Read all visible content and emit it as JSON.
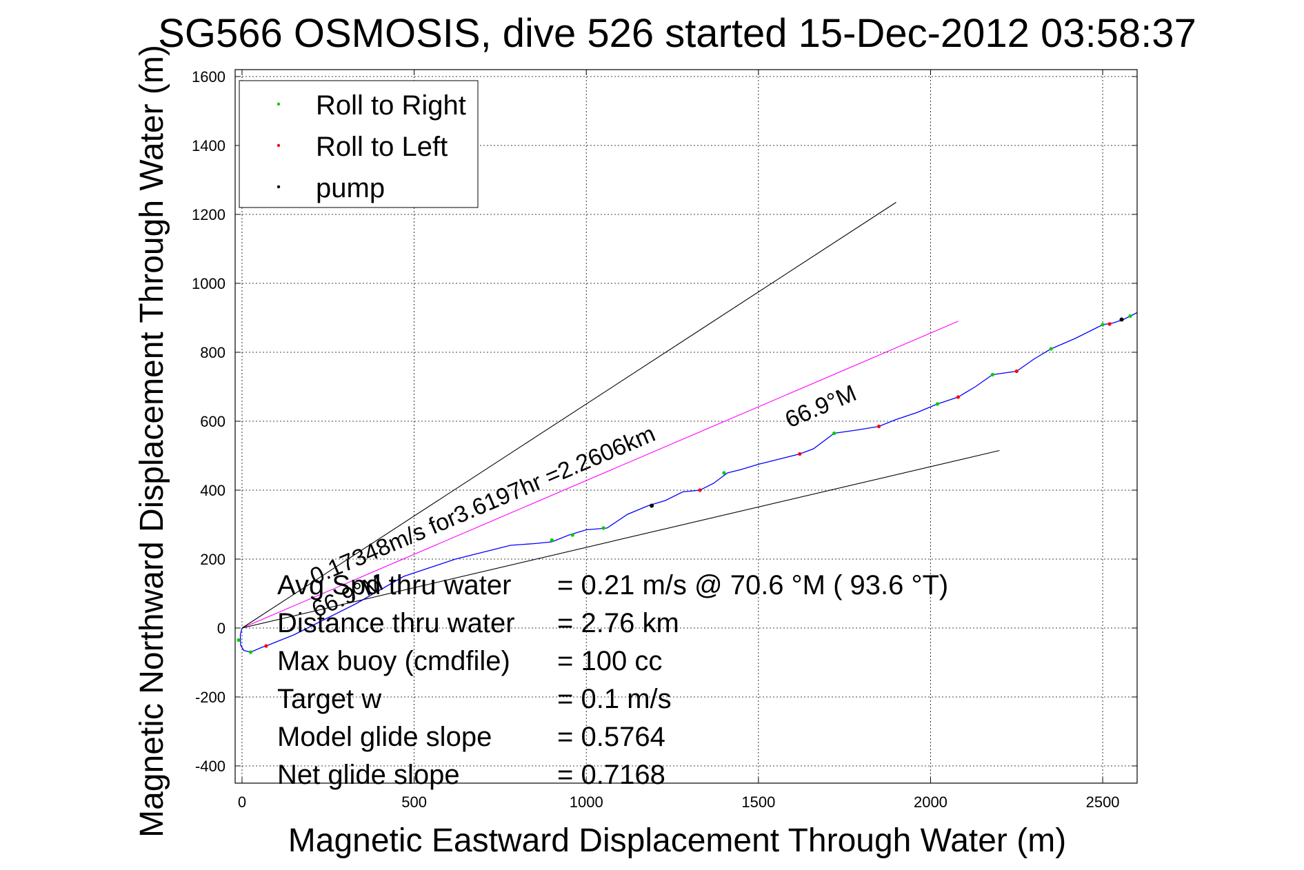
{
  "chart_data": {
    "type": "line",
    "title": "SG566 OSMOSIS, dive 526 started 15-Dec-2012 03:58:37",
    "xlabel": "Magnetic Eastward Displacement Through Water (m)",
    "ylabel": "Magnetic Northward Displacement Through Water (m)",
    "xlim": [
      -20,
      2600
    ],
    "ylim": [
      -450,
      1620
    ],
    "x_ticks": [
      0,
      500,
      1000,
      1500,
      2000,
      2500
    ],
    "y_ticks": [
      -400,
      -200,
      0,
      200,
      400,
      600,
      800,
      1000,
      1200,
      1400,
      1600
    ],
    "grid": true,
    "legend_position": "top-left",
    "legend": [
      {
        "label": "Roll to Right",
        "color": "#00cc00"
      },
      {
        "label": "Roll to Left",
        "color": "#ff0000"
      },
      {
        "label": "pump",
        "color": "#000000"
      }
    ],
    "series": [
      {
        "color": "#0000ff",
        "x": [
          0,
          -5,
          -4,
          5,
          25,
          60,
          70,
          150,
          230,
          330,
          400,
          470,
          560,
          620,
          700,
          780,
          850,
          900,
          950,
          1000,
          1060,
          1120,
          1180,
          1230,
          1280,
          1330,
          1370,
          1410,
          1450,
          1500,
          1560,
          1620,
          1660,
          1720,
          1790,
          1850,
          1900,
          1960,
          2020,
          2080,
          2130,
          2180,
          2250,
          2300,
          2350,
          2420,
          2500,
          2530,
          2560,
          2600
        ],
        "y": [
          0,
          -20,
          -50,
          -65,
          -70,
          -55,
          -52,
          -20,
          20,
          70,
          110,
          150,
          180,
          200,
          220,
          240,
          245,
          250,
          270,
          285,
          290,
          330,
          355,
          370,
          395,
          400,
          420,
          450,
          460,
          475,
          490,
          505,
          520,
          565,
          575,
          585,
          605,
          625,
          650,
          670,
          700,
          735,
          745,
          780,
          810,
          840,
          880,
          885,
          895,
          915
        ]
      },
      {
        "color": "#ff00ff",
        "x": [
          0,
          2080
        ],
        "y": [
          0,
          890
        ]
      },
      {
        "color": "#000000",
        "x": [
          0,
          1900
        ],
        "y": [
          0,
          1235
        ]
      },
      {
        "color": "#000000",
        "x": [
          0,
          2200
        ],
        "y": [
          0,
          515
        ]
      }
    ],
    "markers": {
      "roll_right": {
        "x": [
          -10,
          25,
          900,
          960,
          1050,
          1400,
          1720,
          2020,
          2180,
          2350,
          2500,
          2580
        ],
        "y": [
          -35,
          -70,
          255,
          270,
          290,
          450,
          565,
          650,
          735,
          810,
          880,
          905
        ]
      },
      "roll_left": {
        "x": [
          70,
          1330,
          1620,
          1850,
          2080,
          2250,
          2520
        ],
        "y": [
          -52,
          400,
          505,
          585,
          670,
          745,
          882
        ]
      },
      "pump": {
        "x": [
          1190,
          2555
        ],
        "y": [
          355,
          895
        ]
      }
    },
    "annotations": [
      {
        "text": "66.9°M",
        "x": 1590,
        "y": 580,
        "angle_deg": -23
      },
      {
        "text": "0.17348m/s for3.6197hr =2.2606km",
        "x": 210,
        "y": 125,
        "angle_deg": -23
      },
      {
        "text": "66.9°M",
        "x": 215,
        "y": 30,
        "angle_deg": -23
      }
    ],
    "stats": [
      {
        "label": "Avg Spd thru water",
        "value": "=  0.21 m/s @  70.6 °M ( 93.6 °T)"
      },
      {
        "label": "Distance thru water",
        "value": "=  2.76 km"
      },
      {
        "label": "Max buoy (cmdfile)",
        "value": "= 100 cc"
      },
      {
        "label": "Target w",
        "value": "= 0.1 m/s"
      },
      {
        "label": "Model glide slope",
        "value": "= 0.5764"
      },
      {
        "label": "Net glide slope",
        "value": "= 0.7168"
      }
    ]
  }
}
